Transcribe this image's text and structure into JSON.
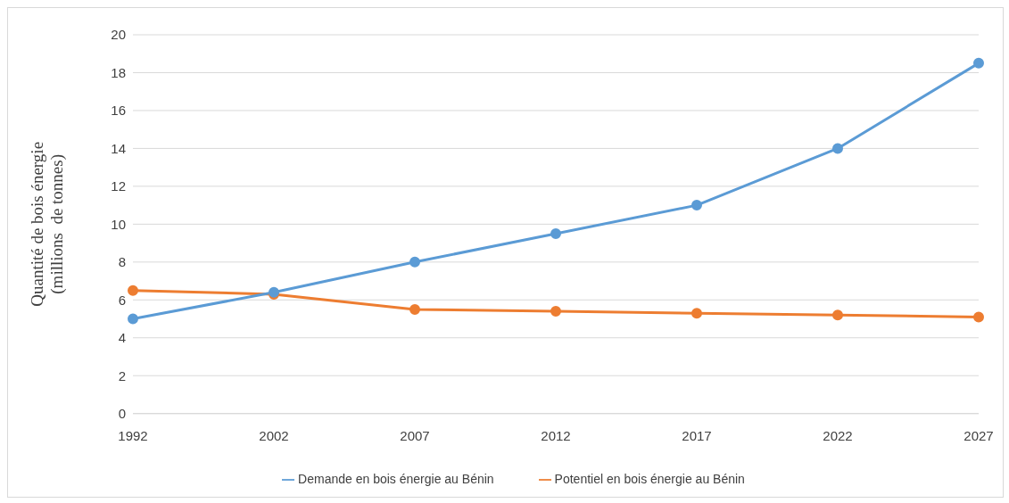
{
  "chart_data": {
    "type": "line",
    "ylabel": "Quantité de bois énergie\n(millions  de tonnes)",
    "categories": [
      "1992",
      "2002",
      "2007",
      "2012",
      "2017",
      "2022",
      "2027"
    ],
    "series": [
      {
        "name": "Demande en bois énergie au Bénin",
        "color": "#5b9bd5",
        "values": [
          5.0,
          6.4,
          8.0,
          9.5,
          11.0,
          14.0,
          18.5
        ]
      },
      {
        "name": "Potentiel en bois énergie au Bénin",
        "color": "#ed7d31",
        "values": [
          6.5,
          6.3,
          5.5,
          5.4,
          5.3,
          5.2,
          5.1
        ]
      }
    ],
    "ylim": [
      0,
      20
    ],
    "yticks": [
      0,
      2,
      4,
      6,
      8,
      10,
      12,
      14,
      16,
      18,
      20
    ],
    "grid": "y",
    "legend": "bottom",
    "marker": "circle",
    "line_style": "solid"
  }
}
